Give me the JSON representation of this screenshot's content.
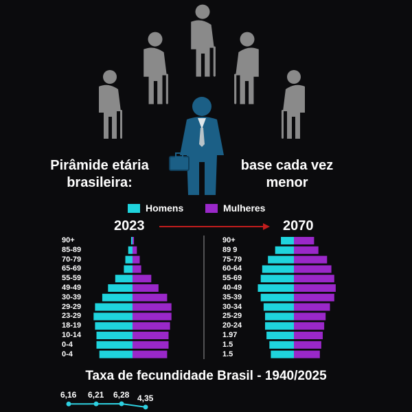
{
  "colors": {
    "background": "#0b0b0d",
    "homens": "#1fd4dd",
    "mulheres": "#9a28c9",
    "arrow": "#c21d1d",
    "elder_figure": "#8a8a8a",
    "worker_suit": "#1b5f86",
    "fertility_line": "#2ed0e0"
  },
  "icons": [
    "elderly-person-with-cane-icon",
    "businessman-with-briefcase-icon"
  ],
  "headline": {
    "left": "Pirâmide etária brasileira:",
    "right": "base cada vez menor"
  },
  "legend": {
    "homens": "Homens",
    "mulheres": "Mulheres"
  },
  "chart_data": [
    {
      "type": "bar",
      "subtype": "population-pyramid",
      "title": "2023",
      "categories": [
        "90+",
        "85-89",
        "70-79",
        "65-69",
        "55-59",
        "49-49",
        "30-39",
        "29-29",
        "23-29",
        "18-19",
        "10-14",
        "0-4",
        "0-4"
      ],
      "series": [
        {
          "name": "Homens",
          "values": [
            1,
            3,
            5,
            6,
            12,
            17,
            21,
            26,
            27,
            26,
            25,
            25,
            23
          ]
        },
        {
          "name": "Mulheres",
          "values": [
            1,
            3,
            5,
            6,
            13,
            18,
            24,
            27,
            27,
            26,
            25,
            25,
            24
          ]
        }
      ],
      "grid": false,
      "legend_position": "top"
    },
    {
      "type": "bar",
      "subtype": "population-pyramid",
      "title": "2070",
      "categories": [
        "90+",
        "89 9",
        "75-79",
        "60-64",
        "55-69",
        "40-49",
        "35-39",
        "30-34",
        "25-29",
        "20-24",
        "1.97",
        "1.5",
        "1.5"
      ],
      "series": [
        {
          "name": "Homens",
          "values": [
            9,
            13,
            18,
            22,
            23,
            25,
            23,
            21,
            20,
            20,
            19,
            17,
            16
          ]
        },
        {
          "name": "Mulheres",
          "values": [
            14,
            17,
            23,
            26,
            28,
            29,
            28,
            25,
            22,
            21,
            20,
            19,
            18
          ]
        }
      ],
      "grid": false,
      "legend_position": "top"
    },
    {
      "type": "line",
      "title": "Taxa de fecundidade Brasil - 1940/2025",
      "x": [
        "",
        "",
        "",
        ""
      ],
      "series": [
        {
          "values": [
            6.16,
            6.21,
            6.28,
            4.35
          ]
        }
      ],
      "labels": [
        "6,16",
        "6,21",
        "6,28",
        "4,35"
      ],
      "grid": false
    }
  ]
}
